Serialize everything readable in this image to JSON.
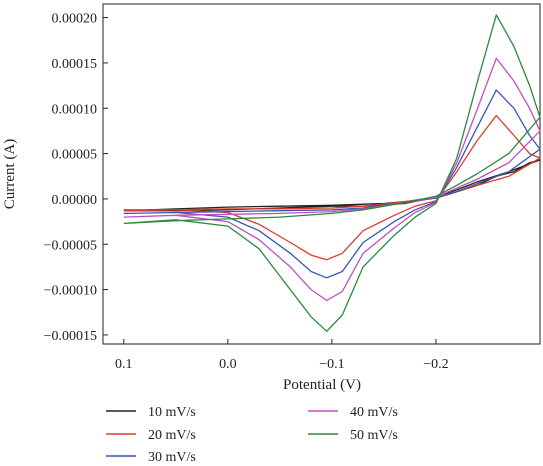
{
  "chart_data": {
    "type": "line",
    "xlabel": "Potential (V)",
    "ylabel": "Current (A)",
    "x_reversed": true,
    "xlim": [
      0.12,
      -0.3
    ],
    "ylim": [
      -0.00016,
      0.000215
    ],
    "x_ticks": [
      {
        "value": 0.1,
        "label": "0.1"
      },
      {
        "value": 0.0,
        "label": "0.0"
      },
      {
        "value": -0.1,
        "label": "−0.1"
      },
      {
        "value": -0.2,
        "label": "−0.2"
      }
    ],
    "y_ticks": [
      {
        "value": 0.0002,
        "label": "0.00020"
      },
      {
        "value": 0.00015,
        "label": "0.00015"
      },
      {
        "value": 0.0001,
        "label": "0.00010"
      },
      {
        "value": 5e-05,
        "label": "0.00005"
      },
      {
        "value": 0.0,
        "label": "0.00000"
      },
      {
        "value": -5e-05,
        "label": "−0.00005"
      },
      {
        "value": -0.0001,
        "label": "−0.00010"
      },
      {
        "value": -0.00015,
        "label": "−0.00015"
      }
    ],
    "legend_position": "bottom",
    "series": [
      {
        "name": "10 mV/s",
        "color": "#222222",
        "x": [
          0.1,
          0.05,
          0.0,
          -0.05,
          -0.1,
          -0.15,
          -0.18,
          -0.2,
          -0.22,
          -0.24,
          -0.258,
          -0.275,
          -0.29,
          -0.3,
          -0.27,
          -0.24,
          -0.22,
          -0.2,
          -0.17,
          -0.13,
          -0.1,
          -0.05,
          0.0,
          0.05,
          0.1
        ],
        "y": [
          -1.3e-05,
          -1.1e-05,
          -9e-06,
          -8e-06,
          -7e-06,
          -5e-06,
          -2e-06,
          1e-06,
          8e-06,
          1.5e-05,
          2.5e-05,
          3e-05,
          4e-05,
          4.3e-05,
          3e-05,
          1.9e-05,
          1e-05,
          2e-06,
          -5e-06,
          -8e-06,
          -8e-06,
          -1e-05,
          -1.2e-05,
          -1.3e-05,
          -1.3e-05
        ]
      },
      {
        "name": "20 mV/s",
        "color": "#e03a2a",
        "x": [
          0.1,
          0.05,
          0.0,
          -0.03,
          -0.06,
          -0.08,
          -0.095,
          -0.11,
          -0.13,
          -0.16,
          -0.18,
          -0.2,
          -0.22,
          -0.24,
          -0.258,
          -0.275,
          -0.29,
          -0.3,
          -0.27,
          -0.24,
          -0.22,
          -0.2,
          -0.17,
          -0.13,
          -0.1,
          -0.05,
          0.0,
          0.05,
          0.1
        ],
        "y": [
          -1.3e-05,
          -1.2e-05,
          -1.5e-05,
          -2.8e-05,
          -4.8e-05,
          -6.2e-05,
          -6.7e-05,
          -6e-05,
          -3.5e-05,
          -1.8e-05,
          -8e-06,
          -2e-06,
          3e-05,
          6.5e-05,
          9.2e-05,
          7e-05,
          5e-05,
          4.5e-05,
          2.5e-05,
          1.5e-05,
          8e-06,
          2e-06,
          -3e-06,
          -8e-06,
          -1e-05,
          -1.1e-05,
          -1.1e-05,
          -1.2e-05,
          -1.2e-05
        ]
      },
      {
        "name": "30 mV/s",
        "color": "#3a55b5",
        "x": [
          0.1,
          0.05,
          0.0,
          -0.03,
          -0.06,
          -0.08,
          -0.095,
          -0.11,
          -0.13,
          -0.16,
          -0.18,
          -0.2,
          -0.22,
          -0.24,
          -0.258,
          -0.275,
          -0.29,
          -0.3,
          -0.27,
          -0.24,
          -0.22,
          -0.2,
          -0.17,
          -0.13,
          -0.1,
          -0.05,
          0.0,
          0.05,
          0.1
        ],
        "y": [
          -1.6e-05,
          -1.5e-05,
          -2e-05,
          -3.5e-05,
          -6e-05,
          -8e-05,
          -8.7e-05,
          -8e-05,
          -4.8e-05,
          -2.5e-05,
          -1.2e-05,
          -3e-06,
          3.5e-05,
          8e-05,
          0.00012,
          0.0001,
          7e-05,
          5.5e-05,
          3e-05,
          1.7e-05,
          8e-06,
          1e-06,
          -4e-06,
          -1e-05,
          -1.2e-05,
          -1.3e-05,
          -1.4e-05,
          -1.5e-05,
          -1.6e-05
        ]
      },
      {
        "name": "40 mV/s",
        "color": "#c24fbf",
        "x": [
          0.1,
          0.05,
          0.0,
          -0.03,
          -0.06,
          -0.08,
          -0.095,
          -0.11,
          -0.13,
          -0.16,
          -0.18,
          -0.2,
          -0.22,
          -0.24,
          -0.258,
          -0.275,
          -0.29,
          -0.3,
          -0.27,
          -0.24,
          -0.22,
          -0.2,
          -0.17,
          -0.13,
          -0.1,
          -0.05,
          0.0,
          0.05,
          0.1
        ],
        "y": [
          -2e-05,
          -1.8e-05,
          -2.5e-05,
          -4.5e-05,
          -7.5e-05,
          -0.0001,
          -0.000112,
          -0.000102,
          -6e-05,
          -3.2e-05,
          -1.5e-05,
          -4e-06,
          4e-05,
          0.0001,
          0.000155,
          0.00013,
          0.0001,
          7.5e-05,
          4e-05,
          2.2e-05,
          1.2e-05,
          2e-06,
          -4e-06,
          -1.1e-05,
          -1.4e-05,
          -1.6e-05,
          -1.7e-05,
          -1.8e-05,
          -2e-05
        ]
      },
      {
        "name": "50 mV/s",
        "color": "#2a8a3e",
        "x": [
          0.1,
          0.05,
          0.0,
          -0.03,
          -0.06,
          -0.08,
          -0.095,
          -0.11,
          -0.13,
          -0.16,
          -0.18,
          -0.2,
          -0.22,
          -0.24,
          -0.258,
          -0.275,
          -0.29,
          -0.3,
          -0.27,
          -0.24,
          -0.22,
          -0.2,
          -0.17,
          -0.13,
          -0.1,
          -0.05,
          0.0,
          0.05,
          0.1
        ],
        "y": [
          -2.7e-05,
          -2.3e-05,
          -3e-05,
          -5.5e-05,
          -0.0001,
          -0.00013,
          -0.000146,
          -0.000128,
          -7.5e-05,
          -4e-05,
          -2e-05,
          -5e-06,
          4.5e-05,
          0.00013,
          0.000203,
          0.000168,
          0.000125,
          9e-05,
          5e-05,
          2.8e-05,
          1.5e-05,
          3e-06,
          -4e-06,
          -1.2e-05,
          -1.6e-05,
          -2e-05,
          -2.2e-05,
          -2.4e-05,
          -2.7e-05
        ]
      }
    ]
  }
}
